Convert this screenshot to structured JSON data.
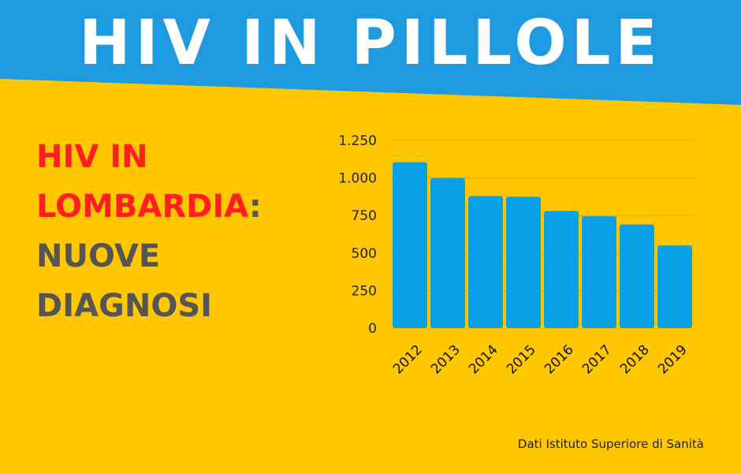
{
  "banner": {
    "title": "HIV IN PILLOLE"
  },
  "headline": {
    "line1": "HIV IN",
    "line2": "LOMBARDIA",
    "line2_suffix": ":",
    "line3": "NUOVE",
    "line4": "DIAGNOSI"
  },
  "source": "Dati Istituto Superiore di Sanità",
  "colors": {
    "background": "#FFC700",
    "banner": "#1E9BE0",
    "bar": "#0AA0E6",
    "headline_red": "#FF1F1F",
    "headline_grey": "#555555"
  },
  "chart_data": {
    "type": "bar",
    "categories": [
      "2012",
      "2013",
      "2014",
      "2015",
      "2016",
      "2017",
      "2018",
      "2019"
    ],
    "values": [
      1105,
      1000,
      880,
      875,
      780,
      745,
      690,
      550
    ],
    "ylim": [
      0,
      1250
    ],
    "yticks": [
      0,
      250,
      500,
      750,
      1000,
      1250
    ],
    "ytick_labels": [
      "0",
      "250",
      "500",
      "750",
      "1.000",
      "1.250"
    ],
    "grid": true,
    "title": "",
    "xlabel": "",
    "ylabel": ""
  }
}
